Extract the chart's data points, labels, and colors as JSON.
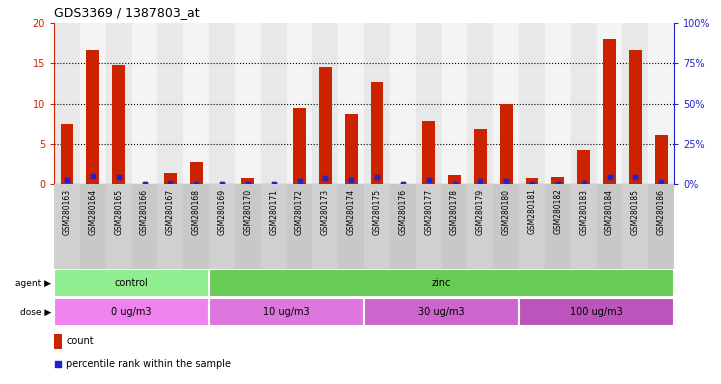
{
  "title": "GDS3369 / 1387803_at",
  "samples": [
    "GSM280163",
    "GSM280164",
    "GSM280165",
    "GSM280166",
    "GSM280167",
    "GSM280168",
    "GSM280169",
    "GSM280170",
    "GSM280171",
    "GSM280172",
    "GSM280173",
    "GSM280174",
    "GSM280175",
    "GSM280176",
    "GSM280177",
    "GSM280178",
    "GSM280179",
    "GSM280180",
    "GSM280181",
    "GSM280182",
    "GSM280183",
    "GSM280184",
    "GSM280185",
    "GSM280186"
  ],
  "count_values": [
    7.5,
    16.7,
    14.8,
    0.0,
    1.4,
    2.8,
    0.0,
    0.8,
    0.0,
    9.5,
    14.5,
    8.7,
    12.7,
    0.0,
    7.8,
    1.1,
    6.8,
    10.0,
    0.8,
    0.9,
    4.2,
    18.0,
    16.7,
    6.1
  ],
  "percentile_values": [
    2.6,
    4.9,
    4.5,
    0.0,
    0.8,
    0.5,
    0.0,
    0.4,
    0.0,
    2.2,
    3.9,
    2.5,
    4.5,
    0.0,
    2.6,
    0.5,
    2.0,
    2.3,
    0.5,
    0.5,
    1.0,
    4.5,
    4.7,
    1.5
  ],
  "ylim_left": [
    0,
    20
  ],
  "ylim_right": [
    0,
    100
  ],
  "yticks_left": [
    0,
    5,
    10,
    15,
    20
  ],
  "yticks_right": [
    0,
    25,
    50,
    75,
    100
  ],
  "agent_groups": [
    {
      "label": "control",
      "start": 0,
      "end": 6,
      "color": "#90ee90"
    },
    {
      "label": "zinc",
      "start": 6,
      "end": 24,
      "color": "#66cc55"
    }
  ],
  "dose_groups": [
    {
      "label": "0 ug/m3",
      "start": 0,
      "end": 6,
      "color": "#ee82ee"
    },
    {
      "label": "10 ug/m3",
      "start": 6,
      "end": 12,
      "color": "#dd77dd"
    },
    {
      "label": "30 ug/m3",
      "start": 12,
      "end": 18,
      "color": "#cc66cc"
    },
    {
      "label": "100 ug/m3",
      "start": 18,
      "end": 24,
      "color": "#bb55bb"
    }
  ],
  "bar_color": "#cc2200",
  "dot_color": "#2222cc",
  "left_axis_color": "#cc2200",
  "right_axis_color": "#2222cc"
}
